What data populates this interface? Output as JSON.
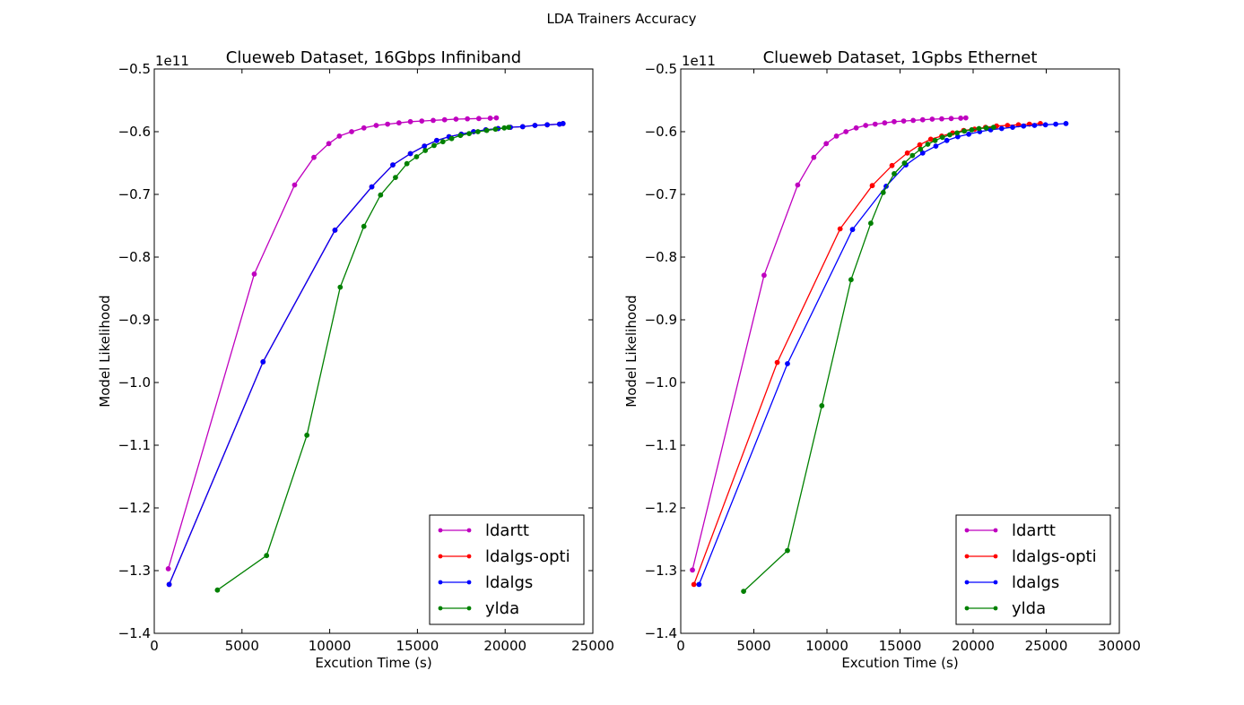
{
  "figure": {
    "suptitle": "LDA Trainers Accuracy"
  },
  "chart_data": [
    {
      "type": "line",
      "title": "Clueweb Dataset, 16Gbps Infiniband",
      "xlabel": "Excution Time (s)",
      "ylabel": "Model Likelihood",
      "offset_label": "1e11",
      "xlim": [
        0,
        25000
      ],
      "ylim": [
        -1.4,
        -0.5
      ],
      "xticks": [
        0,
        5000,
        10000,
        15000,
        20000,
        25000
      ],
      "yticks": [
        -1.4,
        -1.3,
        -1.2,
        -1.1,
        -1.0,
        -0.9,
        -0.8,
        -0.7,
        -0.6,
        -0.5
      ],
      "xtick_labels": [
        "0",
        "5000",
        "10000",
        "15000",
        "20000",
        "25000"
      ],
      "ytick_labels": [
        "−1.4",
        "−1.3",
        "−1.2",
        "−1.1",
        "−1.0",
        "−0.9",
        "−0.8",
        "−0.7",
        "−0.6",
        "−0.5"
      ],
      "grid": false,
      "legend_position": "lower-right",
      "series": [
        {
          "name": "ldartt",
          "color": "#bf00bf",
          "x": [
            800,
            5700,
            8000,
            9100,
            9950,
            10550,
            11250,
            11950,
            12650,
            13300,
            13950,
            14600,
            15250,
            15900,
            16550,
            17200,
            17850,
            18500,
            19150,
            19500
          ],
          "y": [
            -1.297,
            -0.827,
            -0.685,
            -0.641,
            -0.619,
            -0.607,
            -0.6,
            -0.594,
            -0.59,
            -0.588,
            -0.586,
            -0.584,
            -0.583,
            -0.582,
            -0.581,
            -0.58,
            -0.5795,
            -0.579,
            -0.5785,
            -0.578
          ]
        },
        {
          "name": "ldalgs-opti",
          "color": "#ff0000",
          "x": [
            850,
            6200,
            10300,
            12400,
            13600,
            14600,
            15400,
            16100,
            16800,
            17500,
            18200,
            18900,
            19600,
            20300,
            21000,
            21700,
            22400,
            23100,
            23300
          ],
          "y": [
            -1.322,
            -0.967,
            -0.757,
            -0.688,
            -0.653,
            -0.635,
            -0.623,
            -0.614,
            -0.608,
            -0.604,
            -0.6,
            -0.597,
            -0.595,
            -0.593,
            -0.592,
            -0.59,
            -0.589,
            -0.588,
            -0.587
          ]
        },
        {
          "name": "ldalgs",
          "color": "#0000ff",
          "x": [
            850,
            6200,
            10300,
            12400,
            13600,
            14600,
            15400,
            16100,
            16800,
            17500,
            18200,
            18900,
            19600,
            20300,
            21000,
            21700,
            22400,
            23100,
            23300
          ],
          "y": [
            -1.322,
            -0.967,
            -0.757,
            -0.688,
            -0.653,
            -0.635,
            -0.623,
            -0.614,
            -0.608,
            -0.604,
            -0.6,
            -0.597,
            -0.595,
            -0.593,
            -0.592,
            -0.59,
            -0.589,
            -0.588,
            -0.587
          ]
        },
        {
          "name": "ylda",
          "color": "#008000",
          "x": [
            3600,
            6400,
            8700,
            10600,
            11950,
            12900,
            13750,
            14400,
            14950,
            15450,
            15950,
            16450,
            16950,
            17450,
            17950,
            18450,
            18950,
            19450,
            19950,
            20200
          ],
          "y": [
            -1.331,
            -1.276,
            -1.084,
            -0.848,
            -0.751,
            -0.701,
            -0.673,
            -0.651,
            -0.64,
            -0.63,
            -0.622,
            -0.616,
            -0.611,
            -0.606,
            -0.603,
            -0.6,
            -0.598,
            -0.596,
            -0.594,
            -0.593
          ]
        }
      ]
    },
    {
      "type": "line",
      "title": "Clueweb Dataset, 1Gpbs Ethernet",
      "xlabel": "Excution Time (s)",
      "ylabel": "Model Likelihood",
      "offset_label": "1e11",
      "xlim": [
        0,
        30000
      ],
      "ylim": [
        -1.4,
        -0.5
      ],
      "xticks": [
        0,
        5000,
        10000,
        15000,
        20000,
        25000,
        30000
      ],
      "yticks": [
        -1.4,
        -1.3,
        -1.2,
        -1.1,
        -1.0,
        -0.9,
        -0.8,
        -0.7,
        -0.6,
        -0.5
      ],
      "xtick_labels": [
        "0",
        "5000",
        "10000",
        "15000",
        "20000",
        "25000",
        "30000"
      ],
      "ytick_labels": [
        "−1.4",
        "−1.3",
        "−1.2",
        "−1.1",
        "−1.0",
        "−0.9",
        "−0.8",
        "−0.7",
        "−0.6",
        "−0.5"
      ],
      "grid": false,
      "legend_position": "lower-right",
      "series": [
        {
          "name": "ldartt",
          "color": "#bf00bf",
          "x": [
            800,
            5700,
            8000,
            9100,
            9950,
            10650,
            11300,
            12000,
            12650,
            13300,
            13950,
            14600,
            15250,
            15900,
            16550,
            17200,
            17850,
            18500,
            19150,
            19500
          ],
          "y": [
            -1.299,
            -0.829,
            -0.685,
            -0.641,
            -0.619,
            -0.607,
            -0.6,
            -0.594,
            -0.59,
            -0.588,
            -0.586,
            -0.584,
            -0.583,
            -0.582,
            -0.581,
            -0.58,
            -0.5795,
            -0.579,
            -0.5785,
            -0.578
          ]
        },
        {
          "name": "ldalgs-opti",
          "color": "#ff0000",
          "x": [
            900,
            6600,
            10900,
            13100,
            14450,
            15500,
            16350,
            17100,
            17850,
            18600,
            19350,
            20100,
            20850,
            21600,
            22350,
            23100,
            23850,
            24600
          ],
          "y": [
            -1.322,
            -0.968,
            -0.755,
            -0.686,
            -0.654,
            -0.634,
            -0.621,
            -0.612,
            -0.607,
            -0.602,
            -0.598,
            -0.596,
            -0.593,
            -0.591,
            -0.59,
            -0.589,
            -0.588,
            -0.587
          ]
        },
        {
          "name": "ldalgs",
          "color": "#0000ff",
          "x": [
            1250,
            7300,
            11750,
            14050,
            15400,
            16550,
            17450,
            18200,
            18950,
            19700,
            20450,
            21200,
            21950,
            22700,
            23450,
            24200,
            24950,
            25650,
            26350
          ],
          "y": [
            -1.322,
            -0.97,
            -0.756,
            -0.687,
            -0.653,
            -0.634,
            -0.623,
            -0.614,
            -0.608,
            -0.604,
            -0.6,
            -0.597,
            -0.595,
            -0.593,
            -0.591,
            -0.59,
            -0.589,
            -0.588,
            -0.587
          ]
        },
        {
          "name": "ylda",
          "color": "#008000",
          "x": [
            4300,
            7300,
            9650,
            11650,
            13000,
            13850,
            14600,
            15300,
            15850,
            16400,
            16900,
            17400,
            17900,
            18400,
            18900,
            19400,
            19900,
            20400,
            20900,
            21400
          ],
          "y": [
            -1.333,
            -1.268,
            -1.037,
            -0.836,
            -0.746,
            -0.697,
            -0.667,
            -0.65,
            -0.638,
            -0.628,
            -0.62,
            -0.614,
            -0.609,
            -0.605,
            -0.602,
            -0.599,
            -0.597,
            -0.595,
            -0.594,
            -0.593
          ]
        }
      ]
    }
  ]
}
